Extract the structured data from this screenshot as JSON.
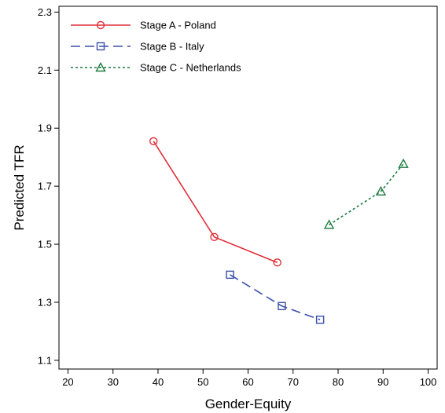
{
  "chart_data": {
    "type": "line",
    "xlabel": "Gender-Equity",
    "ylabel": "Predicted TFR",
    "xlim": [
      18,
      102
    ],
    "ylim": [
      1.07,
      2.32
    ],
    "x_ticks": [
      20,
      30,
      40,
      50,
      60,
      70,
      80,
      90,
      100
    ],
    "y_ticks": [
      1.1,
      1.3,
      1.5,
      1.7,
      1.9,
      2.1,
      2.3
    ],
    "y_tick_labels": [
      "1.1",
      "1.3",
      "1.5",
      "1.7",
      "1.9",
      "2.1",
      "2.3"
    ],
    "grid": false,
    "legend_position": "top-left",
    "series": [
      {
        "name": "Stage A - Poland",
        "color": "#e0303a",
        "marker": "circle",
        "dash": "solid",
        "points": [
          {
            "x": 39,
            "y": 1.855
          },
          {
            "x": 52.5,
            "y": 1.525
          },
          {
            "x": 66.5,
            "y": 1.437
          }
        ]
      },
      {
        "name": "Stage B - Italy",
        "color": "#3a4faa",
        "marker": "square",
        "dash": "long-dash",
        "points": [
          {
            "x": 56,
            "y": 1.395
          },
          {
            "x": 67.5,
            "y": 1.287
          },
          {
            "x": 76,
            "y": 1.24
          }
        ]
      },
      {
        "name": "Stage C - Netherlands",
        "color": "#1a7a3c",
        "marker": "triangle",
        "dash": "dotted",
        "points": [
          {
            "x": 78,
            "y": 1.567
          },
          {
            "x": 89.5,
            "y": 1.682
          },
          {
            "x": 94.5,
            "y": 1.777
          }
        ]
      }
    ]
  }
}
